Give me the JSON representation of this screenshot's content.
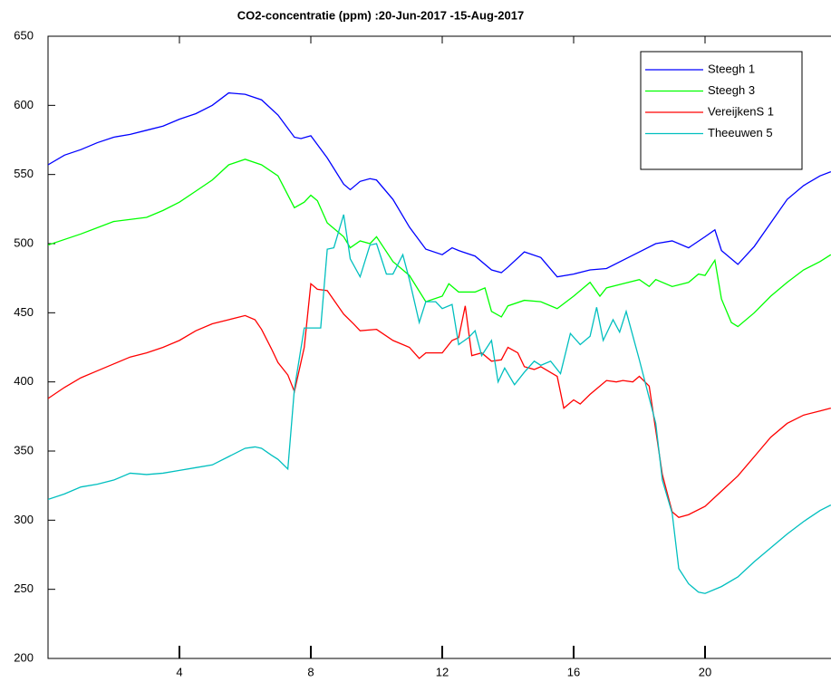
{
  "chart_data": {
    "type": "line",
    "title": "CO2-concentratie (ppm)  :20-Jun-2017 -15-Aug-2017",
    "xlim": [
      0,
      23.83
    ],
    "xticks": [
      4,
      8,
      12,
      16,
      20
    ],
    "ylim": [
      200,
      650
    ],
    "yticks": [
      200,
      250,
      300,
      350,
      400,
      450,
      500,
      550,
      600,
      650
    ],
    "legend": "top-right",
    "series": [
      {
        "name": "Steegh 1",
        "color": "#0000ff",
        "x": [
          0,
          0.5,
          1,
          1.5,
          2,
          2.5,
          3,
          3.5,
          4,
          4.5,
          5,
          5.5,
          6,
          6.5,
          7,
          7.5,
          7.7,
          8,
          8.5,
          9,
          9.2,
          9.5,
          9.8,
          10,
          10.5,
          11,
          11.5,
          12,
          12.3,
          12.5,
          13,
          13.5,
          13.8,
          14,
          14.5,
          15,
          15.5,
          16,
          16.5,
          17,
          17.5,
          18,
          18.5,
          19,
          19.5,
          20,
          20.3,
          20.5,
          21,
          21.5,
          22,
          22.5,
          23,
          23.5,
          23.83
        ],
        "values": [
          557,
          564,
          568,
          573,
          577,
          579,
          582,
          585,
          590,
          594,
          600,
          609,
          608,
          604,
          593,
          577,
          576,
          578,
          562,
          543,
          539,
          545,
          547,
          546,
          532,
          512,
          496,
          492,
          497,
          495,
          491,
          481,
          479,
          483,
          494,
          490,
          476,
          478,
          481,
          482,
          488,
          494,
          500,
          502,
          497,
          505,
          510,
          495,
          485,
          498,
          515,
          532,
          542,
          549,
          552
        ]
      },
      {
        "name": "Steegh 3",
        "color": "#00ff00",
        "x": [
          0,
          1,
          2,
          3,
          3.5,
          4,
          4.5,
          5,
          5.5,
          6,
          6.5,
          7,
          7.5,
          7.8,
          8,
          8.2,
          8.5,
          9,
          9.2,
          9.5,
          9.8,
          10,
          10.5,
          11,
          11.5,
          12,
          12.2,
          12.5,
          13,
          13.3,
          13.5,
          13.8,
          14,
          14.5,
          15,
          15.5,
          16,
          16.5,
          16.8,
          17,
          17.5,
          18,
          18.3,
          18.5,
          19,
          19.5,
          19.8,
          20,
          20.3,
          20.5,
          20.8,
          21,
          21.5,
          22,
          22.5,
          23,
          23.5,
          23.83
        ],
        "values": [
          499,
          507,
          516,
          519,
          524,
          530,
          538,
          546,
          557,
          561,
          557,
          549,
          526,
          530,
          535,
          531,
          515,
          505,
          497,
          502,
          500,
          505,
          487,
          477,
          458,
          462,
          471,
          465,
          465,
          468,
          451,
          447,
          455,
          459,
          458,
          453,
          462,
          472,
          462,
          468,
          471,
          474,
          469,
          474,
          469,
          472,
          478,
          477,
          488,
          460,
          443,
          440,
          450,
          462,
          472,
          481,
          487,
          492
        ]
      },
      {
        "name": "VereijkenS 1",
        "color": "#ff0000",
        "x": [
          0,
          0.5,
          1,
          1.5,
          2,
          2.5,
          3,
          3.5,
          4,
          4.5,
          5,
          5.5,
          6,
          6.3,
          6.5,
          6.8,
          7,
          7.3,
          7.5,
          7.8,
          8,
          8.2,
          8.5,
          9,
          9.3,
          9.5,
          10,
          10.5,
          11,
          11.3,
          11.5,
          12,
          12.3,
          12.5,
          12.7,
          12.9,
          13.2,
          13.5,
          13.8,
          14,
          14.3,
          14.5,
          14.8,
          15,
          15.5,
          15.7,
          16,
          16.2,
          16.5,
          17,
          17.3,
          17.5,
          17.8,
          18,
          18.3,
          18.7,
          19,
          19.2,
          19.5,
          20,
          20.5,
          21,
          21.5,
          22,
          22.5,
          23,
          23.5,
          23.83
        ],
        "values": [
          388,
          396,
          403,
          408,
          413,
          418,
          421,
          425,
          430,
          437,
          442,
          445,
          448,
          445,
          438,
          424,
          414,
          405,
          393,
          425,
          471,
          467,
          466,
          449,
          442,
          437,
          438,
          430,
          425,
          417,
          421,
          421,
          430,
          432,
          455,
          419,
          421,
          415,
          416,
          425,
          421,
          411,
          409,
          411,
          404,
          381,
          387,
          384,
          391,
          401,
          400,
          401,
          400,
          404,
          397,
          333,
          306,
          302,
          304,
          310,
          321,
          332,
          346,
          360,
          370,
          376,
          379,
          381
        ]
      },
      {
        "name": "Theeuwen 5",
        "color": "#00bfbf",
        "x": [
          0,
          0.5,
          1,
          1.5,
          2,
          2.5,
          3,
          3.5,
          4,
          4.5,
          5,
          5.5,
          6,
          6.3,
          6.5,
          6.8,
          7,
          7.3,
          7.5,
          7.8,
          8,
          8.3,
          8.5,
          8.7,
          9,
          9.2,
          9.5,
          9.8,
          10,
          10.3,
          10.5,
          10.8,
          11,
          11.3,
          11.5,
          11.8,
          12,
          12.3,
          12.5,
          12.8,
          13,
          13.2,
          13.5,
          13.7,
          13.9,
          14.2,
          14.5,
          14.8,
          15,
          15.3,
          15.6,
          15.9,
          16.2,
          16.5,
          16.7,
          16.9,
          17.2,
          17.4,
          17.6,
          18,
          18.5,
          18.7,
          19,
          19.2,
          19.5,
          19.8,
          20,
          20.5,
          21,
          21.5,
          22,
          22.5,
          23,
          23.5,
          23.83
        ],
        "values": [
          315,
          319,
          324,
          326,
          329,
          334,
          333,
          334,
          336,
          338,
          340,
          346,
          352,
          353,
          352,
          347,
          344,
          337,
          395,
          439,
          439,
          439,
          496,
          497,
          521,
          489,
          476,
          499,
          500,
          478,
          478,
          492,
          474,
          443,
          458,
          458,
          453,
          456,
          427,
          432,
          437,
          419,
          430,
          400,
          410,
          398,
          407,
          415,
          412,
          415,
          406,
          435,
          427,
          433,
          454,
          430,
          445,
          436,
          451,
          416,
          370,
          329,
          305,
          265,
          254,
          248,
          247,
          252,
          259,
          270,
          280,
          290,
          299,
          307,
          311
        ]
      }
    ]
  }
}
